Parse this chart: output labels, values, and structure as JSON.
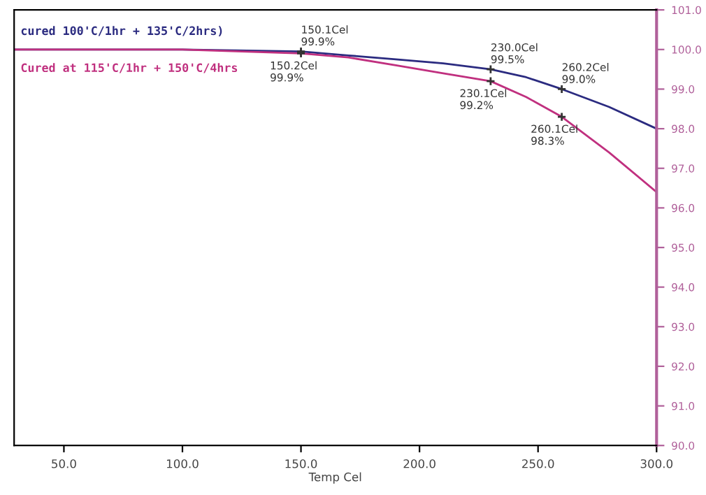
{
  "chart_data": {
    "type": "line",
    "xlabel": "Temp Cel",
    "legend": "top left",
    "xlim": [
      29,
      300
    ],
    "ylim": [
      90,
      101
    ],
    "xticks": [
      {
        "value": 50,
        "label": "50.0"
      },
      {
        "value": 100,
        "label": "100.0"
      },
      {
        "value": 150,
        "label": "150.0"
      },
      {
        "value": 200,
        "label": "200.0"
      },
      {
        "value": 250,
        "label": "250.0"
      },
      {
        "value": 300,
        "label": "300.0"
      }
    ],
    "yticks": [
      {
        "value": 90,
        "label": "90.0"
      },
      {
        "value": 91,
        "label": "91.0"
      },
      {
        "value": 92,
        "label": "92.0"
      },
      {
        "value": 93,
        "label": "93.0"
      },
      {
        "value": 94,
        "label": "94.0"
      },
      {
        "value": 95,
        "label": "95.0"
      },
      {
        "value": 96,
        "label": "96.0"
      },
      {
        "value": 97,
        "label": "97.0"
      },
      {
        "value": 98,
        "label": "98.0"
      },
      {
        "value": 99,
        "label": "99.0"
      },
      {
        "value": 100,
        "label": "100.0"
      },
      {
        "value": 101,
        "label": "101.0"
      }
    ],
    "series": [
      {
        "name": "cured 100'C/1hr + 135'C/2hrs)",
        "color": "#2b2b80",
        "x": [
          29,
          50,
          100,
          150,
          170,
          190,
          210,
          230,
          245,
          260,
          280,
          300
        ],
        "values": [
          100.0,
          100.0,
          100.0,
          99.95,
          99.85,
          99.75,
          99.65,
          99.5,
          99.3,
          99.0,
          98.55,
          98.0
        ]
      },
      {
        "name": "Cured at 115'C/1hr + 150'C/4hrs",
        "color": "#c0307f",
        "x": [
          29,
          50,
          100,
          150,
          170,
          190,
          210,
          230,
          245,
          260,
          280,
          300
        ],
        "values": [
          100.0,
          100.0,
          100.0,
          99.9,
          99.8,
          99.6,
          99.4,
          99.2,
          98.8,
          98.3,
          97.4,
          96.4
        ]
      }
    ],
    "annotations": [
      {
        "text": "150.1Cel\n99.9%",
        "x": 150,
        "y": 99.95
      },
      {
        "text": "150.2Cel\n99.9%",
        "x": 150,
        "y": 99.9
      },
      {
        "text": "230.0Cel\n99.5%",
        "x": 230,
        "y": 99.5
      },
      {
        "text": "230.1Cel\n99.2%",
        "x": 230,
        "y": 99.2
      },
      {
        "text": "260.2Cel\n99.0%",
        "x": 260,
        "y": 99.0
      },
      {
        "text": "260.1Cel\n98.3%",
        "x": 260,
        "y": 98.3
      }
    ]
  }
}
